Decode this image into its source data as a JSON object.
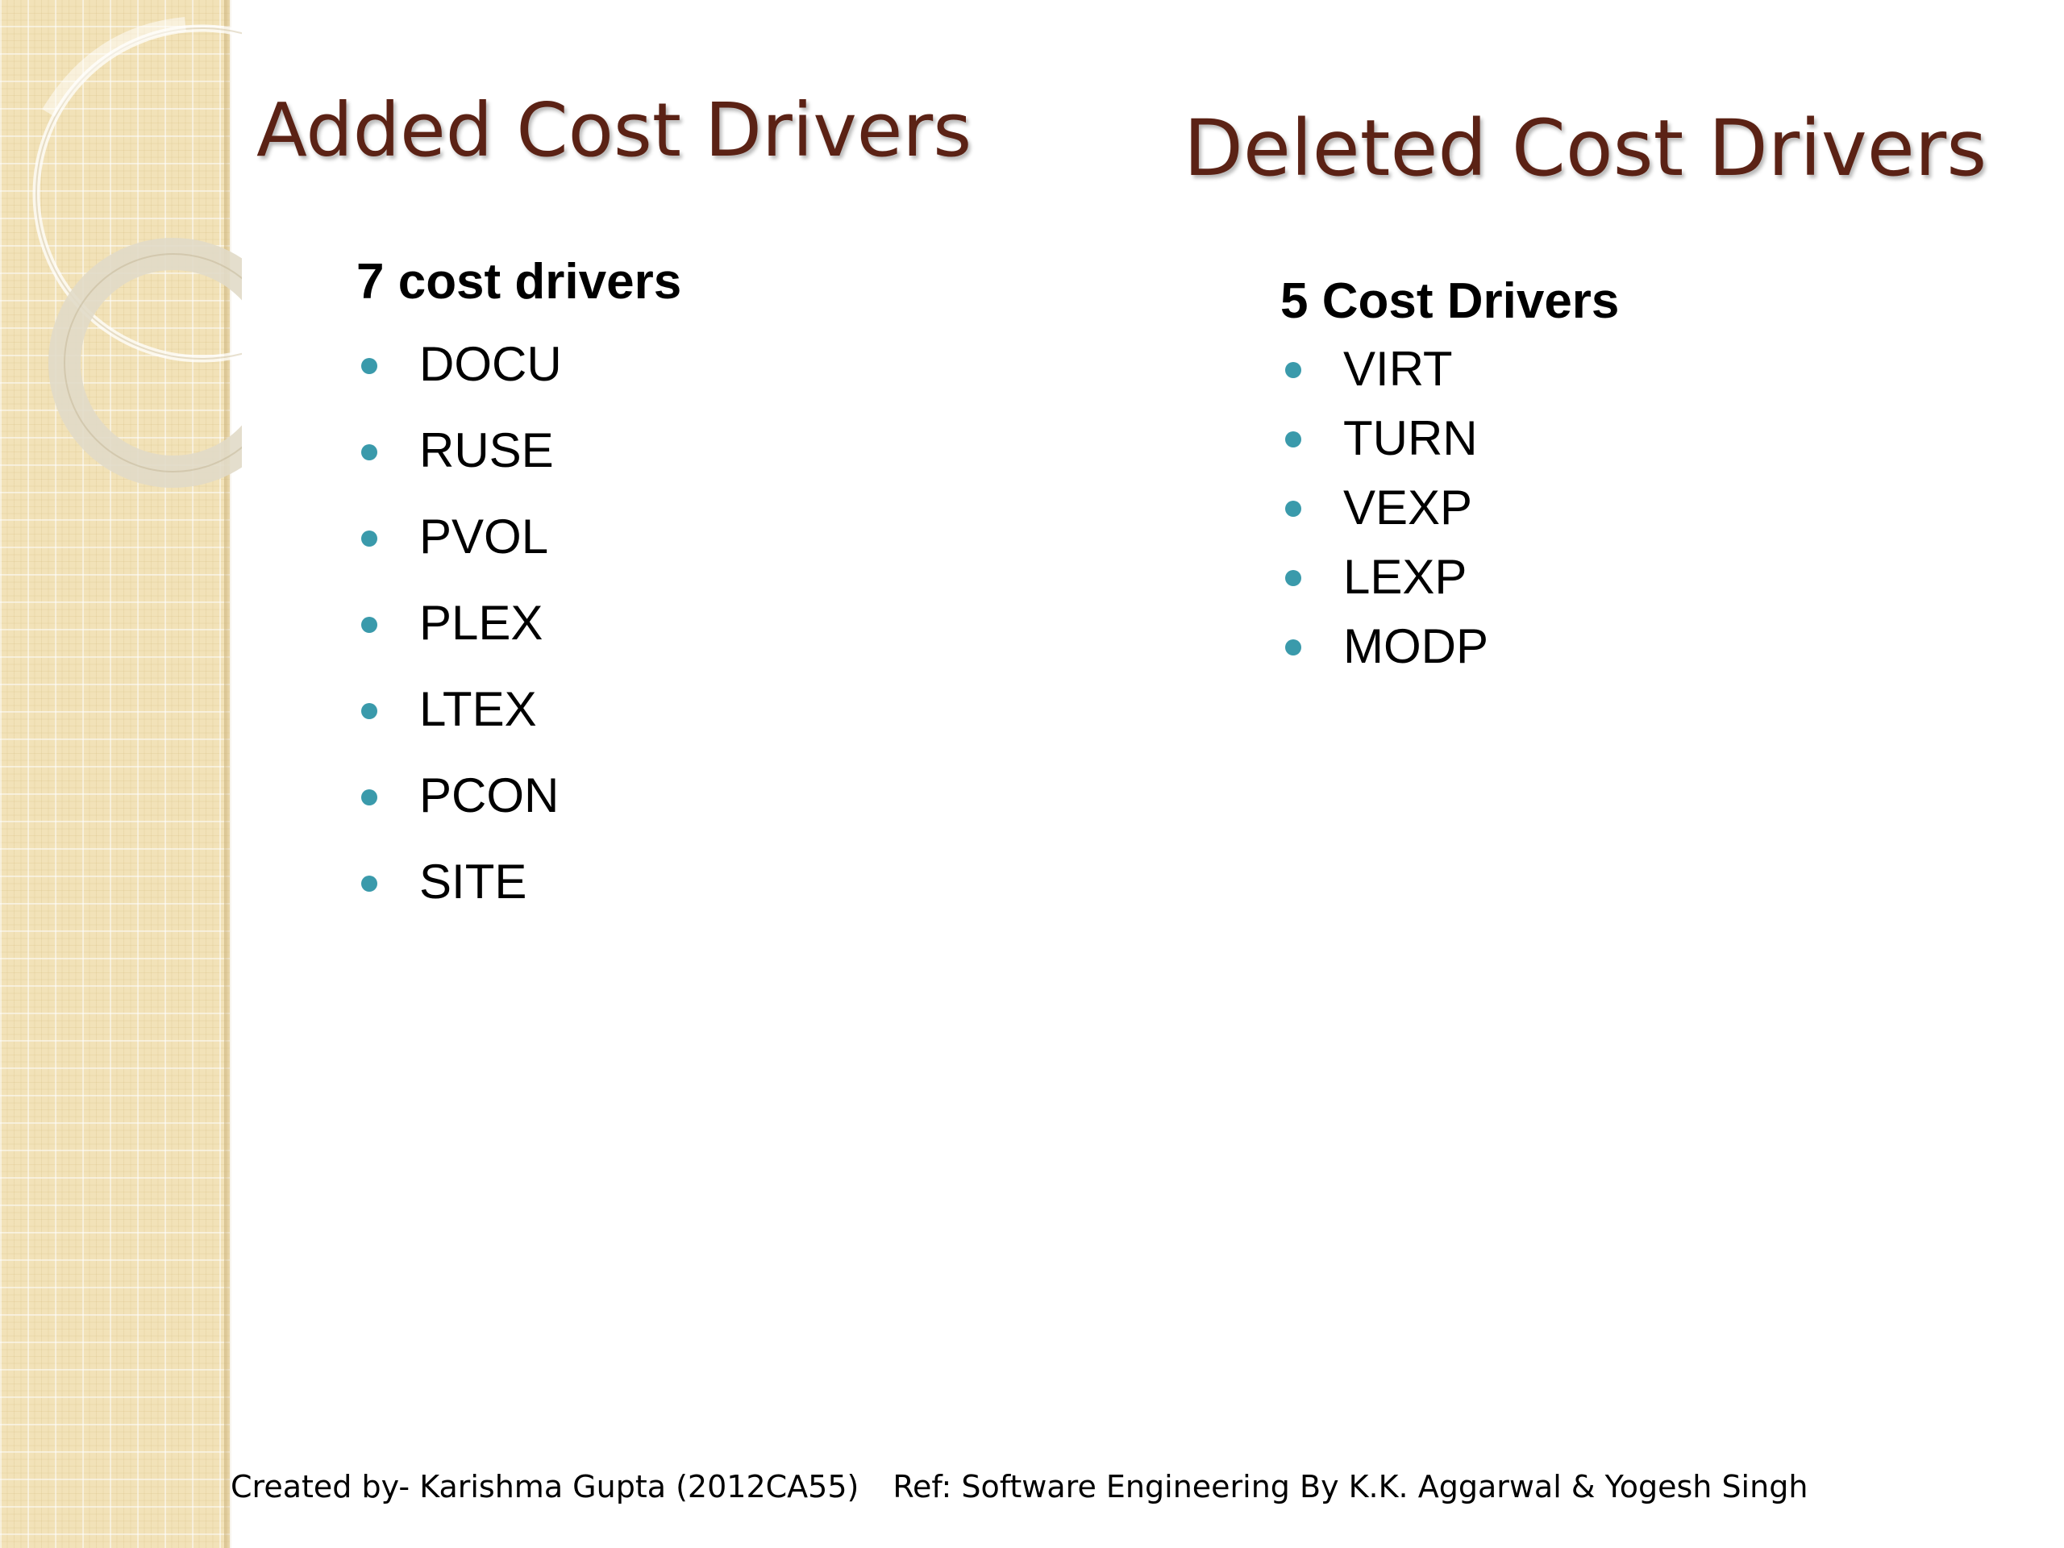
{
  "slide": {
    "added": {
      "title": "Added Cost Drivers",
      "count_label": "7 cost drivers",
      "items": [
        "DOCU",
        "RUSE",
        "PVOL",
        "PLEX",
        "LTEX",
        "PCON",
        "SITE"
      ]
    },
    "deleted": {
      "title": "Deleted Cost Drivers",
      "count_label": "5 Cost Drivers",
      "items": [
        "VIRT",
        "TURN",
        "VEXP",
        "LEXP",
        "MODP"
      ]
    },
    "footer": {
      "created_by": "Created by- Karishma Gupta (2012CA55)",
      "reference": "Ref:  Software Engineering By K.K. Aggarwal & Yogesh Singh"
    }
  },
  "colors": {
    "title": "#5b2215",
    "bullet": "#3a9aab",
    "strip": "#f2e2b8"
  }
}
